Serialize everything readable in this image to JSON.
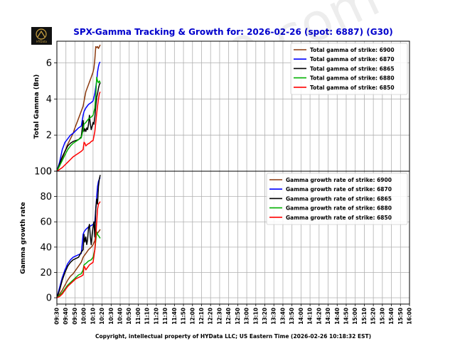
{
  "logo": {
    "text": "HYData"
  },
  "watermark": "hydata9.com",
  "footer": "Copyright, intellectual property of HYData LLC; US Eastern Time (2026-02-26 10:18:32 EST)",
  "chart_data": [
    {
      "type": "line",
      "title": "SPX-Gamma Tracking & Growth for: 2026-02-26 (spot: 6887) (G30)",
      "xlabel": "",
      "ylabel": "Total Gamma (Bn)",
      "ylim": [
        0,
        7.2
      ],
      "yticks": [
        0,
        2,
        4,
        6
      ],
      "xlim": [
        0,
        390
      ],
      "grid": true,
      "legend": "top-right",
      "categories": [
        "09:30",
        "09:40",
        "09:50",
        "10:00",
        "10:10",
        "10:20",
        "10:30",
        "10:40",
        "10:50",
        "11:00",
        "11:10",
        "11:20",
        "11:30",
        "11:40",
        "11:50",
        "12:00",
        "12:10",
        "12:20",
        "12:30",
        "12:40",
        "12:50",
        "13:00",
        "13:10",
        "13:20",
        "13:30",
        "13:40",
        "13:50",
        "14:00",
        "14:10",
        "14:20",
        "14:30",
        "14:40",
        "14:50",
        "15:00",
        "15:10",
        "15:20",
        "15:30",
        "15:40",
        "15:50",
        "16:00"
      ],
      "series": [
        {
          "name": "Total gamma of strike: 6900",
          "color": "#8b3a0f",
          "x": [
            0,
            3,
            6,
            9,
            12,
            15,
            18,
            20,
            23,
            26,
            29,
            32,
            35,
            38,
            40,
            41,
            42,
            43,
            44,
            45,
            46,
            47,
            48
          ],
          "values": [
            0,
            0.3,
            0.7,
            1.1,
            1.5,
            1.8,
            2.1,
            2.4,
            2.8,
            3.2,
            3.6,
            4.4,
            4.8,
            5.2,
            5.5,
            5.7,
            6.2,
            6.9,
            6.85,
            6.9,
            6.8,
            6.9,
            7.0
          ]
        },
        {
          "name": "Total gamma of strike: 6870",
          "color": "#0000ff",
          "x": [
            0,
            3,
            6,
            9,
            12,
            15,
            18,
            21,
            24,
            27,
            29,
            30,
            32,
            35,
            38,
            40,
            42,
            44,
            45,
            46,
            47,
            48
          ],
          "values": [
            0,
            0.5,
            1.2,
            1.6,
            1.8,
            2.0,
            2.1,
            2.25,
            2.4,
            2.5,
            3.1,
            3.3,
            3.5,
            3.7,
            3.8,
            3.9,
            4.3,
            5.0,
            5.5,
            5.8,
            6.0,
            6.05
          ]
        },
        {
          "name": "Total gamma of strike: 6865",
          "color": "#000000",
          "x": [
            0,
            3,
            6,
            9,
            12,
            15,
            18,
            21,
            24,
            27,
            29,
            30,
            31,
            32,
            33,
            34,
            35,
            36,
            37,
            38,
            39,
            40,
            41,
            42,
            43,
            44,
            45,
            46,
            47,
            48
          ],
          "values": [
            0,
            0.4,
            0.8,
            1.1,
            1.4,
            1.55,
            1.65,
            1.7,
            1.75,
            1.9,
            2.8,
            2.2,
            2.35,
            2.2,
            2.4,
            2.3,
            2.6,
            3.1,
            2.6,
            2.3,
            2.5,
            2.7,
            2.6,
            3.0,
            3.6,
            4.1,
            4.3,
            4.6,
            4.8,
            4.9
          ]
        },
        {
          "name": "Total gamma of strike: 6880",
          "color": "#00b000",
          "x": [
            0,
            3,
            6,
            9,
            12,
            15,
            18,
            21,
            24,
            27,
            29,
            30,
            32,
            35,
            38,
            40,
            42,
            43,
            44,
            45,
            46,
            47,
            48
          ],
          "values": [
            0,
            0.3,
            0.6,
            0.9,
            1.2,
            1.4,
            1.55,
            1.65,
            1.75,
            1.85,
            2.3,
            2.6,
            2.7,
            2.9,
            3.0,
            3.1,
            3.5,
            4.2,
            5.2,
            5.0,
            4.9,
            5.0,
            4.9
          ]
        },
        {
          "name": "Total gamma of strike: 6850",
          "color": "#ff0000",
          "x": [
            0,
            3,
            6,
            9,
            12,
            15,
            18,
            21,
            24,
            27,
            29,
            30,
            31,
            32,
            34,
            36,
            38,
            40,
            42,
            43,
            44,
            45,
            46,
            47,
            48
          ],
          "values": [
            0,
            0.1,
            0.2,
            0.35,
            0.5,
            0.65,
            0.8,
            0.9,
            1.0,
            1.1,
            1.2,
            1.6,
            1.55,
            1.4,
            1.5,
            1.55,
            1.65,
            1.7,
            2.2,
            2.7,
            3.2,
            3.6,
            4.0,
            4.3,
            4.4
          ]
        }
      ]
    },
    {
      "type": "line",
      "title": "",
      "xlabel": "",
      "ylabel": "Gamma growth rate",
      "ylim": [
        -5,
        100
      ],
      "yticks": [
        0,
        20,
        40,
        60,
        80,
        100
      ],
      "xlim": [
        0,
        390
      ],
      "grid": true,
      "legend": "top-right",
      "categories": [
        "09:30",
        "09:40",
        "09:50",
        "10:00",
        "10:10",
        "10:20",
        "10:30",
        "10:40",
        "10:50",
        "11:00",
        "11:10",
        "11:20",
        "11:30",
        "11:40",
        "11:50",
        "12:00",
        "12:10",
        "12:20",
        "12:30",
        "12:40",
        "12:50",
        "13:00",
        "13:10",
        "13:20",
        "13:30",
        "13:40",
        "13:50",
        "14:00",
        "14:10",
        "14:20",
        "14:30",
        "14:40",
        "14:50",
        "15:00",
        "15:10",
        "15:20",
        "15:30",
        "15:40",
        "15:50",
        "16:00"
      ],
      "series": [
        {
          "name": "Gamma growth rate of strike: 6900",
          "color": "#8b3a0f",
          "x": [
            0,
            3,
            6,
            9,
            12,
            15,
            18,
            21,
            24,
            27,
            29,
            32,
            35,
            38,
            40,
            42,
            43,
            44,
            45,
            46,
            47,
            48
          ],
          "values": [
            0,
            3,
            6,
            10,
            14,
            17,
            19,
            22,
            25,
            28,
            32,
            35,
            38,
            40,
            42,
            45,
            50,
            52,
            51,
            52,
            53,
            54
          ]
        },
        {
          "name": "Gamma growth rate of strike: 6870",
          "color": "#0000ff",
          "x": [
            0,
            3,
            6,
            9,
            12,
            15,
            18,
            21,
            24,
            27,
            29,
            30,
            32,
            35,
            38,
            40,
            42,
            43,
            44,
            45,
            46,
            47,
            48
          ],
          "values": [
            0,
            8,
            16,
            22,
            27,
            30,
            32,
            33,
            34,
            35,
            50,
            52,
            54,
            56,
            57,
            58,
            60,
            70,
            80,
            88,
            92,
            94,
            95
          ]
        },
        {
          "name": "Gamma growth rate of strike: 6865",
          "color": "#000000",
          "x": [
            0,
            3,
            6,
            9,
            12,
            15,
            18,
            21,
            24,
            27,
            29,
            30,
            31,
            32,
            33,
            34,
            35,
            36,
            37,
            38,
            39,
            40,
            41,
            42,
            43,
            44,
            45,
            46,
            47,
            48
          ],
          "values": [
            0,
            6,
            14,
            20,
            25,
            28,
            30,
            31,
            32,
            36,
            38,
            50,
            44,
            48,
            42,
            46,
            55,
            58,
            48,
            42,
            50,
            56,
            60,
            48,
            70,
            78,
            74,
            88,
            94,
            97
          ]
        },
        {
          "name": "Gamma growth rate of strike: 6880",
          "color": "#00b000",
          "x": [
            0,
            3,
            6,
            9,
            12,
            15,
            18,
            21,
            24,
            27,
            29,
            30,
            32,
            35,
            38,
            40,
            42,
            43,
            44,
            45,
            46,
            47,
            48
          ],
          "values": [
            0,
            2,
            4,
            7,
            10,
            12,
            14,
            16,
            18,
            19,
            22,
            26,
            27,
            29,
            30,
            32,
            38,
            45,
            52,
            50,
            49,
            48,
            47
          ]
        },
        {
          "name": "Gamma growth rate of strike: 6850",
          "color": "#ff0000",
          "x": [
            0,
            3,
            6,
            9,
            12,
            15,
            18,
            21,
            24,
            27,
            29,
            30,
            31,
            32,
            34,
            36,
            38,
            40,
            42,
            43,
            44,
            45,
            46,
            47,
            48
          ],
          "values": [
            0,
            1,
            3,
            6,
            9,
            11,
            13,
            15,
            16,
            17,
            18,
            25,
            24,
            22,
            24,
            26,
            27,
            28,
            38,
            48,
            60,
            70,
            74,
            75,
            76
          ]
        }
      ]
    }
  ]
}
